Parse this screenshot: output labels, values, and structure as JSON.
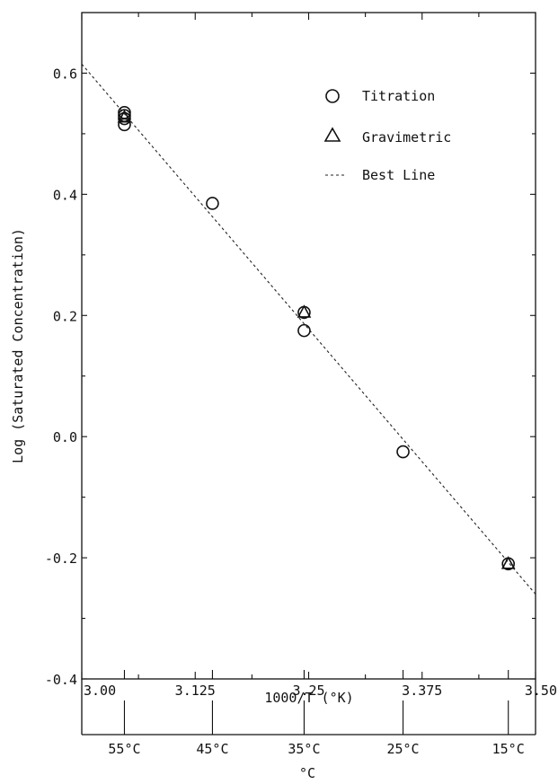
{
  "chart_data": {
    "type": "scatter",
    "title": "",
    "ylabel": "Log (Saturated Concentration)",
    "xlabel": "1000/T (°K)",
    "secondary_xlabel": "°C",
    "xlim": [
      3.0,
      3.5
    ],
    "ylim": [
      -0.4,
      0.7
    ],
    "x_ticks": [
      {
        "value": 3.0,
        "label": "3.00"
      },
      {
        "value": 3.125,
        "label": "3.125"
      },
      {
        "value": 3.25,
        "label": "3.25"
      },
      {
        "value": 3.375,
        "label": "3.375"
      },
      {
        "value": 3.5,
        "label": "3.50"
      }
    ],
    "y_ticks": [
      {
        "value": -0.4,
        "label": "-0.4"
      },
      {
        "value": -0.2,
        "label": "-0.2"
      },
      {
        "value": 0.0,
        "label": "0.0"
      },
      {
        "value": 0.2,
        "label": "0.2"
      },
      {
        "value": 0.4,
        "label": "0.4"
      },
      {
        "value": 0.6,
        "label": "0.6"
      }
    ],
    "celsius_ticks": [
      {
        "x": 3.047,
        "label": "55°C"
      },
      {
        "x": 3.144,
        "label": "45°C"
      },
      {
        "x": 3.245,
        "label": "35°C"
      },
      {
        "x": 3.354,
        "label": "25°C"
      },
      {
        "x": 3.47,
        "label": "15°C"
      }
    ],
    "grid": false,
    "legend_position": "top-right",
    "series": [
      {
        "name": "Titration",
        "marker": "circle",
        "points": [
          {
            "x": 3.047,
            "y": 0.535
          },
          {
            "x": 3.047,
            "y": 0.53
          },
          {
            "x": 3.047,
            "y": 0.525
          },
          {
            "x": 3.047,
            "y": 0.515
          },
          {
            "x": 3.144,
            "y": 0.385
          },
          {
            "x": 3.245,
            "y": 0.205
          },
          {
            "x": 3.245,
            "y": 0.175
          },
          {
            "x": 3.354,
            "y": -0.025
          },
          {
            "x": 3.47,
            "y": -0.21
          }
        ]
      },
      {
        "name": "Gravimetric",
        "marker": "triangle",
        "points": [
          {
            "x": 3.047,
            "y": 0.527
          },
          {
            "x": 3.245,
            "y": 0.205
          },
          {
            "x": 3.47,
            "y": -0.21
          }
        ]
      },
      {
        "name": "Best Line",
        "marker": "dashed-line",
        "line": [
          {
            "x": 3.0,
            "y": 0.615
          },
          {
            "x": 3.5,
            "y": -0.26
          }
        ]
      }
    ]
  }
}
